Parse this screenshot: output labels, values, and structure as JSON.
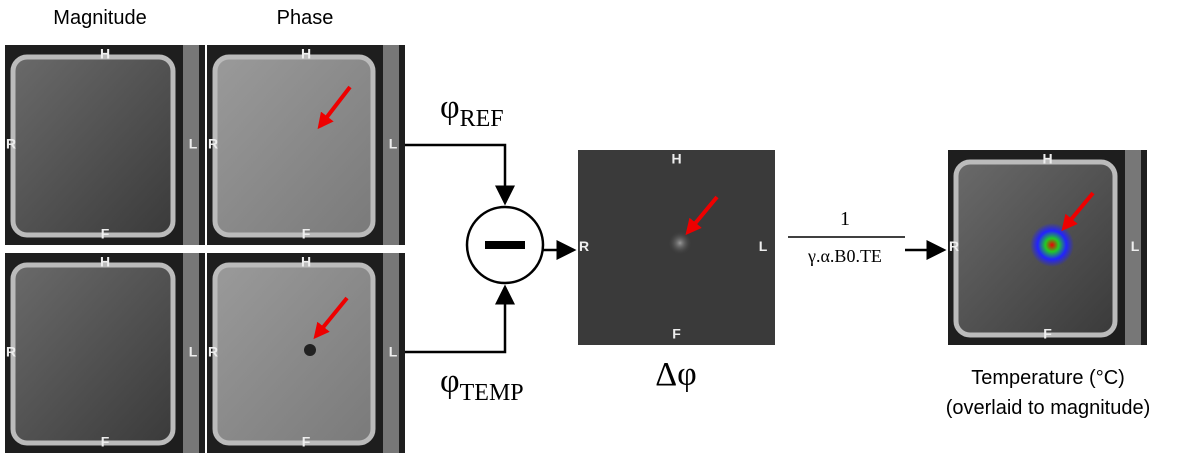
{
  "column_labels": [
    "Magnitude",
    "Phase"
  ],
  "inputs": [
    {
      "symbol": "φ",
      "subscript": "REF"
    },
    {
      "symbol": "φ",
      "subscript": "TEMP"
    }
  ],
  "difference": {
    "label": "Δφ"
  },
  "scaling": {
    "numerator": "1",
    "denominator": "γ.α.B0.TE"
  },
  "output": {
    "title": "Temperature (°C)",
    "note": "(overlaid to magnitude)"
  },
  "orientation": {
    "top": "H",
    "bottom": "F",
    "right": "R",
    "left": "L"
  }
}
